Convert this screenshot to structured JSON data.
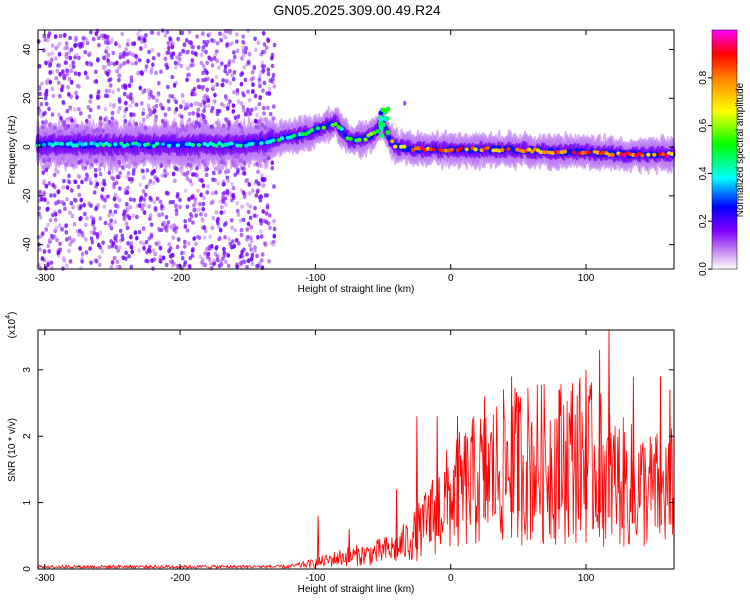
{
  "title": "GN05.2025.309.00.49.R24",
  "chart_data": [
    {
      "type": "heatmap",
      "xlabel": "Height of straight line (km)",
      "ylabel": "Frequency (Hz)",
      "xlim": [
        -305,
        165
      ],
      "ylim": [
        -50,
        48
      ],
      "xticks": [
        -300,
        -200,
        -100,
        0,
        100
      ],
      "yticks": [
        -40,
        -20,
        0,
        20,
        40
      ],
      "colorbar": {
        "label": "Normalized spectral amplitude",
        "range": [
          0,
          1
        ],
        "ticks": [
          "0.0",
          "0.2",
          "0.4",
          "0.6",
          "0.8"
        ],
        "tick_values": [
          0.0,
          0.2,
          0.4,
          0.6,
          0.8
        ],
        "colormap": [
          "#ffffff",
          "#a020f0",
          "#0000ff",
          "#00ffff",
          "#00ff00",
          "#ffff00",
          "#ff0000",
          "#ff00ff"
        ]
      },
      "ridge_frequency": {
        "x": [
          -305,
          -250,
          -200,
          -150,
          -130,
          -110,
          -95,
          -85,
          -75,
          -65,
          -55,
          -50,
          -45,
          -40,
          -20,
          0,
          20,
          50,
          80,
          100,
          130,
          165
        ],
        "y": [
          1,
          1,
          1,
          1,
          3,
          5,
          8,
          10,
          3,
          3,
          6,
          10,
          3,
          0,
          -1,
          -1,
          -1,
          -1,
          -2,
          -2,
          -3,
          -3
        ]
      },
      "peak_amplitude": {
        "x": [
          -305,
          -250,
          -200,
          -150,
          -130,
          -100,
          -80,
          -60,
          -50,
          -40,
          -20,
          0,
          50,
          100,
          165
        ],
        "y": [
          0.45,
          0.45,
          0.45,
          0.45,
          0.5,
          0.55,
          0.55,
          0.6,
          0.6,
          0.8,
          0.9,
          0.9,
          0.9,
          0.95,
          0.9
        ]
      },
      "noise_band_x": [
        -305,
        -130
      ]
    },
    {
      "type": "line",
      "xlabel": "Height of straight line (km)",
      "ylabel": "SNR (10 * v/v)",
      "scale_label": "(x10",
      "scale_exponent": "4",
      "xlim": [
        -305,
        165
      ],
      "ylim": [
        0,
        3.6
      ],
      "xticks": [
        -300,
        -200,
        -100,
        0,
        100
      ],
      "yticks": [
        0,
        1,
        2,
        3
      ],
      "series": [
        {
          "color": "#ff0000",
          "envelope_x": [
            -305,
            -200,
            -150,
            -120,
            -100,
            -80,
            -60,
            -40,
            -30,
            -20,
            -10,
            0,
            10,
            20,
            30,
            40,
            50,
            60,
            70,
            80,
            90,
            100,
            110,
            120,
            130,
            140,
            150,
            165
          ],
          "envelope_y": [
            0.03,
            0.03,
            0.03,
            0.04,
            0.1,
            0.2,
            0.25,
            0.35,
            0.5,
            0.7,
            1.0,
            1.2,
            1.35,
            1.5,
            1.6,
            1.7,
            1.75,
            1.8,
            1.75,
            1.8,
            1.9,
            1.8,
            1.7,
            1.5,
            1.4,
            1.35,
            1.3,
            1.35
          ],
          "spikes_x": [
            -98,
            -75,
            -40,
            -25,
            -15,
            -10,
            5,
            25,
            45,
            50,
            80,
            100,
            110,
            117,
            135,
            155,
            162
          ],
          "spikes_y": [
            0.8,
            0.6,
            1.2,
            2.3,
            1.2,
            2.3,
            2.3,
            2.6,
            2.9,
            2.6,
            2.7,
            3.0,
            3.3,
            3.6,
            2.9,
            2.9,
            2.7
          ]
        }
      ]
    }
  ]
}
